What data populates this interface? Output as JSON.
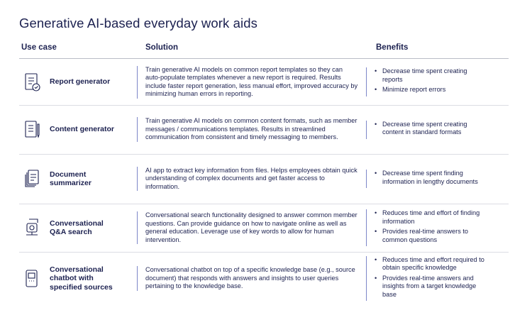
{
  "title": "Generative AI-based everyday work aids",
  "columns": [
    "Use case",
    "Solution",
    "Benefits"
  ],
  "rows": [
    {
      "use_case": "Report generator",
      "solution": "Train generative AI models on common report templates so they can auto-populate templates whenever a new report is required. Results include faster report generation, less manual effort, improved accuracy by minimizing human errors in reporting.",
      "benefits": [
        "Decrease time spent creating reports",
        "Minimize report errors"
      ]
    },
    {
      "use_case": "Content generator",
      "solution": "Train generative AI models on common content formats, such as member messages / communications templates. Results in streamlined communication from consistent and timely messaging to members.",
      "benefits": [
        "Decrease time spent creating content in standard formats"
      ]
    },
    {
      "use_case": "Document summarizer",
      "solution": "AI app to extract key information from files. Helps employees obtain quick understanding of complex documents and get faster access to information.",
      "benefits": [
        "Decrease time spent finding information in lengthy documents"
      ]
    },
    {
      "use_case": "Conversational Q&A search",
      "solution": "Conversational search functionality designed to answer common member questions. Can provide guidance on how to navigate online as well as general education. Leverage use of key words to allow for human intervention.",
      "benefits": [
        "Reduces time and effort of finding information",
        "Provides real-time answers to common questions"
      ]
    },
    {
      "use_case": "Conversational chatbot with specified sources",
      "solution": "Conversational chatbot on top of a specific knowledge base (e.g., source document) that responds with answers and insights to user queries pertaining to the knowledge base.",
      "benefits": [
        "Reduces time and effort required to obtain specific knowledge",
        "Provides real-time answers and insights from a target knowledge base"
      ]
    }
  ]
}
